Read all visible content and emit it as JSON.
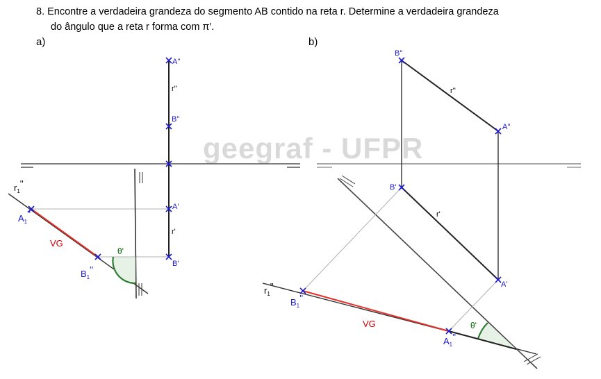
{
  "question": {
    "line1": "8. Encontre a verdadeira grandeza do segmento AB contido na reta r. Determine a verdadeira grandeza",
    "line2": "do ângulo que a reta r forma com π′."
  },
  "watermark": "geegraf - UFPR",
  "part_a": {
    "label": "a)",
    "points": {
      "A2": "A''",
      "B2": "B''",
      "A1": "A'",
      "B1": "B'",
      "r2": "r''",
      "r1": "r'",
      "r_rot_main": "r",
      "r_rot_sub": "1",
      "r_rot_sup": "''",
      "A_rot_main": "A",
      "A_rot_sub": "1",
      "A_rot_sup": "''",
      "B_rot_main": "B",
      "B_rot_sub": "1",
      "B_rot_sup": "''"
    },
    "vg": "VG",
    "theta": "θ'"
  },
  "part_b": {
    "label": "b)",
    "points": {
      "A2": "A''",
      "B2": "B''",
      "A1": "A'",
      "B1": "B'",
      "r2": "r''",
      "r1": "r'",
      "r_rot_main": "r",
      "r_rot_sub": "1",
      "r_rot_sup": "''",
      "A_rot_main": "A",
      "A_rot_sub": "1",
      "A_rot_sup": "''",
      "B_rot_main": "B",
      "B_rot_sub": "1",
      "B_rot_sup": "''"
    },
    "vg": "VG",
    "theta": "θ'"
  },
  "colors": {
    "projection_point": "#1a1ad0",
    "true_length": "#e8302a",
    "angle_arc": "#2e7d32",
    "angle_fill": "#e6f2e6",
    "construction": "#b0b0b0",
    "ground_line": "#555555"
  }
}
